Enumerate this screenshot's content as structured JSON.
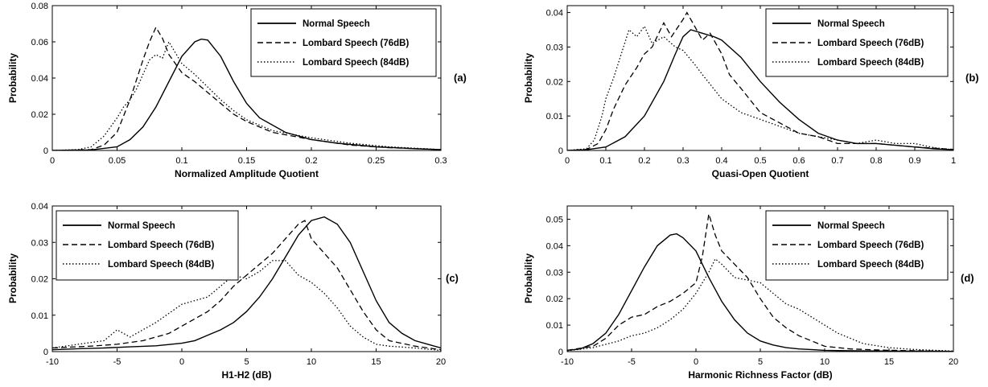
{
  "chart_data": [
    {
      "type": "line",
      "panel_label": "(a)",
      "xlabel": "Normalized Amplitude Quotient",
      "ylabel": "Probability",
      "xlim": [
        0,
        0.3
      ],
      "ylim": [
        0,
        0.08
      ],
      "xticks": [
        0,
        0.05,
        0.1,
        0.15,
        0.2,
        0.25,
        0.3
      ],
      "yticks": [
        0,
        0.02,
        0.04,
        0.06,
        0.08
      ],
      "xtick_labels": [
        "0",
        "0.05",
        "0.1",
        "0.15",
        "0.2",
        "0.25",
        "0.3"
      ],
      "ytick_labels": [
        "0",
        "0.02",
        "0.04",
        "0.06",
        "0.08"
      ],
      "legend_position": "top-right",
      "series": [
        {
          "name": "Normal Speech",
          "style": "solid",
          "x": [
            0,
            0.03,
            0.05,
            0.06,
            0.07,
            0.08,
            0.09,
            0.1,
            0.11,
            0.115,
            0.12,
            0.13,
            0.14,
            0.15,
            0.16,
            0.18,
            0.2,
            0.22,
            0.25,
            0.28,
            0.3
          ],
          "y": [
            0,
            0.0003,
            0.002,
            0.006,
            0.013,
            0.024,
            0.038,
            0.052,
            0.06,
            0.0615,
            0.061,
            0.052,
            0.038,
            0.026,
            0.018,
            0.01,
            0.006,
            0.004,
            0.002,
            0.001,
            0.0005
          ]
        },
        {
          "name": "Lombard Speech (76dB)",
          "style": "dashed",
          "x": [
            0,
            0.03,
            0.04,
            0.05,
            0.06,
            0.07,
            0.075,
            0.08,
            0.085,
            0.09,
            0.1,
            0.11,
            0.12,
            0.13,
            0.14,
            0.15,
            0.17,
            0.2,
            0.23,
            0.26,
            0.3
          ],
          "y": [
            0,
            0.0005,
            0.003,
            0.01,
            0.028,
            0.05,
            0.06,
            0.068,
            0.062,
            0.053,
            0.043,
            0.038,
            0.032,
            0.026,
            0.02,
            0.016,
            0.01,
            0.006,
            0.003,
            0.0015,
            0.0005
          ]
        },
        {
          "name": "Lombard Speech (84dB)",
          "style": "dotted",
          "x": [
            0,
            0.02,
            0.03,
            0.04,
            0.05,
            0.055,
            0.06,
            0.065,
            0.07,
            0.075,
            0.08,
            0.085,
            0.09,
            0.1,
            0.11,
            0.12,
            0.13,
            0.14,
            0.15,
            0.17,
            0.2,
            0.23,
            0.26,
            0.3
          ],
          "y": [
            0,
            0.0005,
            0.002,
            0.008,
            0.018,
            0.024,
            0.028,
            0.034,
            0.042,
            0.05,
            0.053,
            0.051,
            0.06,
            0.048,
            0.042,
            0.035,
            0.028,
            0.022,
            0.017,
            0.011,
            0.007,
            0.004,
            0.002,
            0.0005
          ]
        }
      ]
    },
    {
      "type": "line",
      "panel_label": "(b)",
      "xlabel": "Quasi-Open Quotient",
      "ylabel": "Probability",
      "xlim": [
        0,
        1
      ],
      "ylim": [
        0,
        0.042
      ],
      "xticks": [
        0,
        0.1,
        0.2,
        0.3,
        0.4,
        0.5,
        0.6,
        0.7,
        0.8,
        0.9,
        1
      ],
      "yticks": [
        0,
        0.01,
        0.02,
        0.03,
        0.04
      ],
      "xtick_labels": [
        "0",
        "0.1",
        "0.2",
        "0.3",
        "0.4",
        "0.5",
        "0.6",
        "0.7",
        "0.8",
        "0.9",
        "1"
      ],
      "ytick_labels": [
        "0",
        "0.01",
        "0.02",
        "0.03",
        "0.04"
      ],
      "legend_position": "top-right",
      "series": [
        {
          "name": "Normal Speech",
          "style": "solid",
          "x": [
            0,
            0.05,
            0.1,
            0.15,
            0.2,
            0.25,
            0.28,
            0.3,
            0.32,
            0.35,
            0.38,
            0.4,
            0.45,
            0.5,
            0.55,
            0.6,
            0.65,
            0.7,
            0.75,
            0.8,
            0.85,
            0.9,
            0.95,
            1
          ],
          "y": [
            0,
            0.0002,
            0.001,
            0.004,
            0.01,
            0.02,
            0.028,
            0.033,
            0.035,
            0.034,
            0.033,
            0.032,
            0.027,
            0.02,
            0.014,
            0.009,
            0.005,
            0.003,
            0.002,
            0.002,
            0.0015,
            0.001,
            0.0005,
            0.0002
          ]
        },
        {
          "name": "Lombard Speech (76dB)",
          "style": "dashed",
          "x": [
            0,
            0.05,
            0.08,
            0.1,
            0.12,
            0.15,
            0.18,
            0.2,
            0.22,
            0.25,
            0.27,
            0.3,
            0.31,
            0.33,
            0.35,
            0.37,
            0.4,
            0.42,
            0.45,
            0.5,
            0.55,
            0.6,
            0.65,
            0.7,
            0.8,
            0.9,
            1
          ],
          "y": [
            0,
            0.0003,
            0.002,
            0.006,
            0.012,
            0.019,
            0.024,
            0.028,
            0.03,
            0.037,
            0.033,
            0.038,
            0.04,
            0.036,
            0.032,
            0.034,
            0.028,
            0.022,
            0.018,
            0.011,
            0.008,
            0.005,
            0.004,
            0.002,
            0.002,
            0.001,
            0.0003
          ]
        },
        {
          "name": "Lombard Speech (84dB)",
          "style": "dotted",
          "x": [
            0,
            0.05,
            0.07,
            0.09,
            0.1,
            0.12,
            0.14,
            0.16,
            0.18,
            0.2,
            0.22,
            0.25,
            0.28,
            0.3,
            0.33,
            0.35,
            0.4,
            0.45,
            0.5,
            0.55,
            0.6,
            0.65,
            0.7,
            0.75,
            0.8,
            0.85,
            0.9,
            0.95,
            1
          ],
          "y": [
            0,
            0.0005,
            0.003,
            0.01,
            0.015,
            0.021,
            0.028,
            0.035,
            0.033,
            0.036,
            0.031,
            0.033,
            0.03,
            0.029,
            0.025,
            0.022,
            0.015,
            0.011,
            0.009,
            0.007,
            0.005,
            0.004,
            0.003,
            0.002,
            0.003,
            0.002,
            0.002,
            0.0008,
            0.0002
          ]
        }
      ]
    },
    {
      "type": "line",
      "panel_label": "(c)",
      "xlabel": "H1-H2 (dB)",
      "ylabel": "Probability",
      "xlim": [
        -10,
        20
      ],
      "ylim": [
        0,
        0.04
      ],
      "xticks": [
        -10,
        -5,
        0,
        5,
        10,
        15,
        20
      ],
      "yticks": [
        0,
        0.01,
        0.02,
        0.03,
        0.04
      ],
      "xtick_labels": [
        "-10",
        "-5",
        "0",
        "5",
        "10",
        "15",
        "20"
      ],
      "ytick_labels": [
        "0",
        "0.01",
        "0.02",
        "0.03",
        "0.04"
      ],
      "legend_position": "top-left",
      "series": [
        {
          "name": "Normal Speech",
          "style": "solid",
          "x": [
            -10,
            -8,
            -6,
            -4,
            -2,
            0,
            1,
            2,
            3,
            4,
            5,
            6,
            7,
            8,
            9,
            10,
            11,
            12,
            13,
            14,
            15,
            16,
            17,
            18,
            19,
            20
          ],
          "y": [
            0.0005,
            0.0008,
            0.001,
            0.0013,
            0.0016,
            0.0023,
            0.003,
            0.0045,
            0.006,
            0.008,
            0.011,
            0.015,
            0.02,
            0.026,
            0.032,
            0.036,
            0.037,
            0.035,
            0.03,
            0.022,
            0.014,
            0.008,
            0.005,
            0.003,
            0.002,
            0.001
          ]
        },
        {
          "name": "Lombard Speech (76dB)",
          "style": "dashed",
          "x": [
            -10,
            -7,
            -5,
            -3,
            -1,
            0,
            1,
            2,
            3,
            4,
            5,
            6,
            7,
            8,
            9,
            9.5,
            10,
            11,
            12,
            13,
            14,
            15,
            16,
            18,
            20
          ],
          "y": [
            0.001,
            0.0015,
            0.002,
            0.003,
            0.005,
            0.007,
            0.009,
            0.011,
            0.014,
            0.018,
            0.021,
            0.024,
            0.027,
            0.031,
            0.035,
            0.036,
            0.031,
            0.027,
            0.023,
            0.017,
            0.011,
            0.006,
            0.003,
            0.0015,
            0.0005
          ]
        },
        {
          "name": "Lombard Speech (84dB)",
          "style": "dotted",
          "x": [
            -10,
            -8,
            -6,
            -5,
            -4,
            -2,
            0,
            1,
            2,
            3,
            4,
            5,
            6,
            7,
            8,
            9,
            10,
            11,
            12,
            13,
            14,
            15,
            16,
            18,
            20
          ],
          "y": [
            0.001,
            0.002,
            0.003,
            0.006,
            0.004,
            0.008,
            0.013,
            0.014,
            0.015,
            0.018,
            0.021,
            0.02,
            0.022,
            0.025,
            0.025,
            0.021,
            0.019,
            0.016,
            0.012,
            0.007,
            0.004,
            0.002,
            0.0015,
            0.001,
            0.0003
          ]
        }
      ]
    },
    {
      "type": "line",
      "panel_label": "(d)",
      "xlabel": "Harmonic Richness Factor (dB)",
      "ylabel": "Probability",
      "xlim": [
        -10,
        20
      ],
      "ylim": [
        0,
        0.055
      ],
      "xticks": [
        -10,
        -5,
        0,
        5,
        10,
        15,
        20
      ],
      "yticks": [
        0,
        0.01,
        0.02,
        0.03,
        0.04,
        0.05
      ],
      "xtick_labels": [
        "-10",
        "-5",
        "0",
        "5",
        "10",
        "15",
        "20"
      ],
      "ytick_labels": [
        "0",
        "0.01",
        "0.02",
        "0.03",
        "0.04",
        "0.05"
      ],
      "legend_position": "top-right",
      "series": [
        {
          "name": "Normal Speech",
          "style": "solid",
          "x": [
            -10,
            -9,
            -8,
            -7,
            -6,
            -5,
            -4,
            -3,
            -2,
            -1.5,
            -1,
            0,
            1,
            2,
            3,
            4,
            5,
            6,
            7,
            8,
            10,
            12,
            15,
            20
          ],
          "y": [
            0.0005,
            0.001,
            0.003,
            0.007,
            0.014,
            0.023,
            0.032,
            0.04,
            0.044,
            0.0445,
            0.043,
            0.038,
            0.028,
            0.019,
            0.012,
            0.007,
            0.004,
            0.0025,
            0.0015,
            0.001,
            0.0005,
            0.0003,
            0.0002,
            0.0001
          ]
        },
        {
          "name": "Lombard Speech (76dB)",
          "style": "dashed",
          "x": [
            -10,
            -8,
            -7,
            -6,
            -5,
            -4,
            -3,
            -2,
            -1,
            0,
            0.5,
            1,
            1.5,
            2,
            3,
            4,
            5,
            6,
            7,
            8,
            9,
            10,
            12,
            15,
            20
          ],
          "y": [
            0.0005,
            0.002,
            0.005,
            0.01,
            0.013,
            0.014,
            0.017,
            0.019,
            0.022,
            0.026,
            0.036,
            0.052,
            0.044,
            0.038,
            0.033,
            0.028,
            0.02,
            0.013,
            0.009,
            0.006,
            0.004,
            0.002,
            0.001,
            0.0005,
            0.0001
          ]
        },
        {
          "name": "Lombard Speech (84dB)",
          "style": "dotted",
          "x": [
            -10,
            -8,
            -6,
            -5,
            -4,
            -3,
            -2,
            -1,
            0,
            1,
            1.5,
            2,
            3,
            4,
            5,
            6,
            7,
            8,
            9,
            10,
            11,
            12,
            13,
            15,
            17,
            20
          ],
          "y": [
            0.0003,
            0.0015,
            0.004,
            0.006,
            0.007,
            0.009,
            0.012,
            0.016,
            0.022,
            0.03,
            0.035,
            0.033,
            0.028,
            0.027,
            0.026,
            0.022,
            0.018,
            0.016,
            0.013,
            0.01,
            0.007,
            0.005,
            0.003,
            0.0015,
            0.0008,
            0.0002
          ]
        }
      ]
    }
  ]
}
